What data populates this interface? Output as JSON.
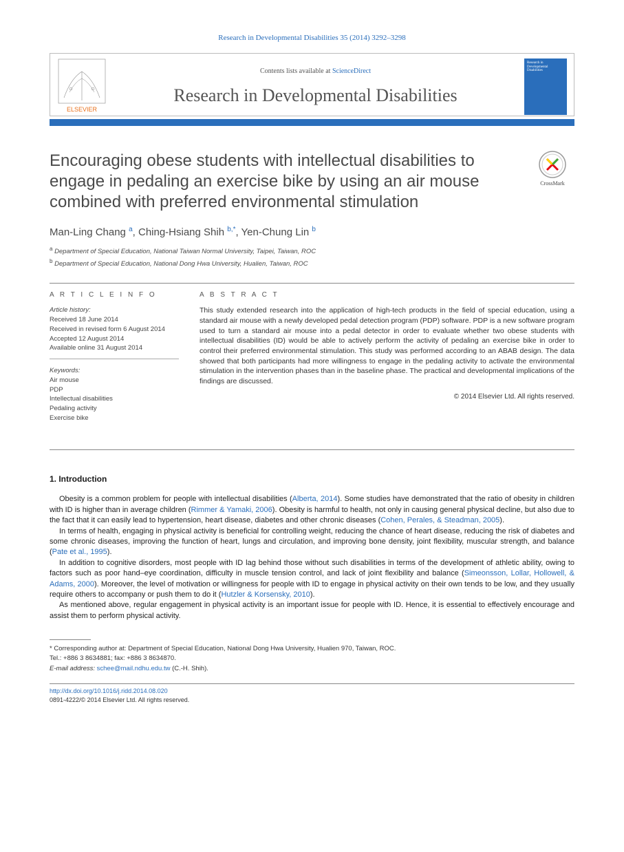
{
  "citation": "Research in Developmental Disabilities 35 (2014) 3292–3298",
  "header": {
    "contents_prefix": "Contents lists available at ",
    "contents_link": "ScienceDirect",
    "journal_name": "Research in Developmental Disabilities",
    "publisher": "ELSEVIER",
    "cover_text": "Research in Developmental Disabilities"
  },
  "crossmark_label": "CrossMark",
  "title": "Encouraging obese students with intellectual disabilities to engage in pedaling an exercise bike by using an air mouse combined with preferred environmental stimulation",
  "authors": [
    {
      "name": "Man-Ling Chang",
      "marks": "a"
    },
    {
      "name": "Ching-Hsiang Shih",
      "marks": "b,*"
    },
    {
      "name": "Yen-Chung Lin",
      "marks": "b"
    }
  ],
  "affiliations": [
    {
      "mark": "a",
      "text": "Department of Special Education, National Taiwan Normal University, Taipei, Taiwan, ROC"
    },
    {
      "mark": "b",
      "text": "Department of Special Education, National Dong Hwa University, Hualien, Taiwan, ROC"
    }
  ],
  "article_info": {
    "heading": "A R T I C L E  I N F O",
    "history_label": "Article history:",
    "history": [
      "Received 18 June 2014",
      "Received in revised form 6 August 2014",
      "Accepted 12 August 2014",
      "Available online 31 August 2014"
    ],
    "keywords_label": "Keywords:",
    "keywords": [
      "Air mouse",
      "PDP",
      "Intellectual disabilities",
      "Pedaling activity",
      "Exercise bike"
    ]
  },
  "abstract": {
    "heading": "A B S T R A C T",
    "text": "This study extended research into the application of high-tech products in the field of special education, using a standard air mouse with a newly developed pedal detection program (PDP) software. PDP is a new software program used to turn a standard air mouse into a pedal detector in order to evaluate whether two obese students with intellectual disabilities (ID) would be able to actively perform the activity of pedaling an exercise bike in order to control their preferred environmental stimulation. This study was performed according to an ABAB design. The data showed that both participants had more willingness to engage in the pedaling activity to activate the environmental stimulation in the intervention phases than in the baseline phase. The practical and developmental implications of the findings are discussed.",
    "copyright": "© 2014 Elsevier Ltd. All rights reserved."
  },
  "section1": {
    "heading": "1. Introduction",
    "paragraphs": [
      {
        "pre": "Obesity is a common problem for people with intellectual disabilities (",
        "link1": "Alberta, 2014",
        "mid1": "). Some studies have demonstrated that the ratio of obesity in children with ID is higher than in average children (",
        "link2": "Rimmer & Yamaki, 2006",
        "mid2": "). Obesity is harmful to health, not only in causing general physical decline, but also due to the fact that it can easily lead to hypertension, heart disease, diabetes and other chronic diseases (",
        "link3": "Cohen, Perales, & Steadman, 2005",
        "post": ")."
      },
      {
        "pre": "In terms of health, engaging in physical activity is beneficial for controlling weight, reducing the chance of heart disease, reducing the risk of diabetes and some chronic diseases, improving the function of heart, lungs and circulation, and improving bone density, joint flexibility, muscular strength, and balance (",
        "link1": "Pate et al., 1995",
        "post": ")."
      },
      {
        "pre": "In addition to cognitive disorders, most people with ID lag behind those without such disabilities in terms of the development of athletic ability, owing to factors such as poor hand–eye coordination, difficulty in muscle tension control, and lack of joint flexibility and balance (",
        "link1": "Simeonsson, Lollar, Hollowell, & Adams, 2000",
        "mid1": "). Moreover, the level of motivation or willingness for people with ID to engage in physical activity on their own tends to be low, and they usually require others to accompany or push them to do it (",
        "link2": "Hutzler & Korsensky, 2010",
        "post": ")."
      },
      {
        "pre": "As mentioned above, regular engagement in physical activity is an important issue for people with ID. Hence, it is essential to effectively encourage and assist them to perform physical activity.",
        "post": ""
      }
    ]
  },
  "footnote": {
    "corr": "* Corresponding author at: Department of Special Education, National Dong Hwa University, Hualien 970, Taiwan, ROC.",
    "tel": "Tel.: +886 3 8634881; fax: +886 3 8634870.",
    "email_label": "E-mail address: ",
    "email": "schee@mail.ndhu.edu.tw",
    "email_owner": " (C.-H. Shih)."
  },
  "footer": {
    "doi": "http://dx.doi.org/10.1016/j.ridd.2014.08.020",
    "issn_line": "0891-4222/© 2014 Elsevier Ltd. All rights reserved."
  },
  "colors": {
    "link": "#2a6ebb",
    "bar": "#2a6ebb",
    "heading_gray": "#4a4a4a"
  }
}
